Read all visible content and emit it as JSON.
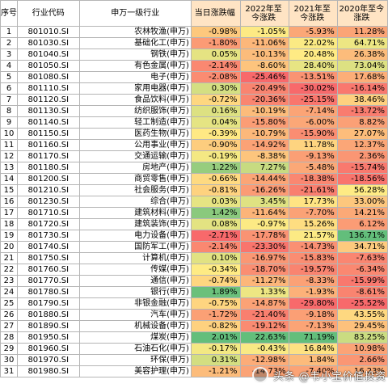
{
  "table": {
    "headers": {
      "idx": "序号",
      "code": "行业代码",
      "name": "申万一级行业",
      "daily": "当日涨跌幅",
      "y2022": "2022年至今涨跌",
      "y2021": "2021年至今涨跌",
      "y2020": "2020年至今涨跌"
    },
    "rows": [
      {
        "idx": "1",
        "code": "801010.SI",
        "name": "农林牧渔(申万)",
        "daily": "-0.98%",
        "y2022": "-1.05%",
        "y2021": "-5.93%",
        "y2020": "11.28%"
      },
      {
        "idx": "2",
        "code": "801030.SI",
        "name": "基础化工(申万)",
        "daily": "-1.80%",
        "y2022": "-11.06%",
        "y2021": "22.02%",
        "y2020": "64.71%"
      },
      {
        "idx": "3",
        "code": "801040.SI",
        "name": "钢铁(申万)",
        "daily": "0.05%",
        "y2022": "-10.13%",
        "y2021": "20.48%",
        "y2020": "26.38%"
      },
      {
        "idx": "4",
        "code": "801050.SI",
        "name": "有色金属(申万)",
        "daily": "-2.14%",
        "y2022": "-8.60%",
        "y2021": "28.40%",
        "y2020": "73.04%"
      },
      {
        "idx": "5",
        "code": "801080.SI",
        "name": "电子(申万)",
        "daily": "-2.08%",
        "y2022": "-25.46%",
        "y2021": "-13.51%",
        "y2020": "17.68%"
      },
      {
        "idx": "6",
        "code": "801110.SI",
        "name": "家用电器(申万)",
        "daily": "0.30%",
        "y2022": "-20.49%",
        "y2021": "-30.02%",
        "y2020": "-16.14%"
      },
      {
        "idx": "7",
        "code": "801120.SI",
        "name": "食品饮料(申万)",
        "daily": "-0.72%",
        "y2022": "-20.36%",
        "y2021": "-25.15%",
        "y2020": "38.46%"
      },
      {
        "idx": "8",
        "code": "801130.SI",
        "name": "纺织服饰(申万)",
        "daily": "0.16%",
        "y2022": "-10.19%",
        "y2021": "-7.14%",
        "y2020": "-13.72%"
      },
      {
        "idx": "9",
        "code": "801140.SI",
        "name": "轻工制造(申万)",
        "daily": "0.04%",
        "y2022": "-15.80%",
        "y2021": "-6.00%",
        "y2020": "8.82%"
      },
      {
        "idx": "10",
        "code": "801150.SI",
        "name": "医药生物(申万)",
        "daily": "-0.39%",
        "y2022": "-10.79%",
        "y2021": "-15.90%",
        "y2020": "27.07%"
      },
      {
        "idx": "11",
        "code": "801160.SI",
        "name": "公用事业(申万)",
        "daily": "-0.90%",
        "y2022": "-14.92%",
        "y2021": "11.78%",
        "y2020": "12.37%"
      },
      {
        "idx": "12",
        "code": "801170.SI",
        "name": "交通运输(申万)",
        "daily": "-0.19%",
        "y2022": "-8.38%",
        "y2021": "-9.13%",
        "y2020": "2.36%"
      },
      {
        "idx": "13",
        "code": "801180.SI",
        "name": "房地产(申万)",
        "daily": "1.22%",
        "y2022": "7.27%",
        "y2021": "-5.48%",
        "y2020": "-15.74%"
      },
      {
        "idx": "14",
        "code": "801200.SI",
        "name": "商贸零售(申万)",
        "daily": "-0.66%",
        "y2022": "-14.44%",
        "y2021": "-18.38%",
        "y2020": "-18.56%"
      },
      {
        "idx": "15",
        "code": "801210.SI",
        "name": "社会服务(申万)",
        "daily": "-0.81%",
        "y2022": "-16.26%",
        "y2021": "-21.61%",
        "y2020": "56.28%"
      },
      {
        "idx": "16",
        "code": "801230.SI",
        "name": "综合(申万)",
        "daily": "0.03%",
        "y2022": "3.45%",
        "y2021": "17.73%",
        "y2020": "33.00%"
      },
      {
        "idx": "17",
        "code": "801710.SI",
        "name": "建筑材料(申万)",
        "daily": "1.42%",
        "y2022": "-11.64%",
        "y2021": "-7.70%",
        "y2020": "14.21%"
      },
      {
        "idx": "18",
        "code": "801720.SI",
        "name": "建筑装饰(申万)",
        "daily": "0.08%",
        "y2022": "-0.97%",
        "y2021": "15.26%",
        "y2020": "6.12%"
      },
      {
        "idx": "19",
        "code": "801730.SI",
        "name": "电力设备(申万)",
        "daily": "-2.71%",
        "y2022": "-17.78%",
        "y2021": "21.57%",
        "y2020": "136.71%"
      },
      {
        "idx": "20",
        "code": "801740.SI",
        "name": "国防军工(申万)",
        "daily": "-2.14%",
        "y2022": "-23.30%",
        "y2021": "-14.73%",
        "y2020": "34.71%"
      },
      {
        "idx": "21",
        "code": "801750.SI",
        "name": "计算机(申万)",
        "daily": "0.10%",
        "y2022": "-16.97%",
        "y2021": "-15.83%",
        "y2020": "-7.63%"
      },
      {
        "idx": "22",
        "code": "801760.SI",
        "name": "传媒(申万)",
        "daily": "-0.34%",
        "y2022": "-18.70%",
        "y2021": "-19.57%",
        "y2020": "-6.34%"
      },
      {
        "idx": "23",
        "code": "801770.SI",
        "name": "通信(申万)",
        "daily": "-0.74%",
        "y2022": "-11.27%",
        "y2021": "-8.33%",
        "y2020": "-15.99%"
      },
      {
        "idx": "24",
        "code": "801780.SI",
        "name": "银行(申万)",
        "daily": "1.89%",
        "y2022": "1.33%",
        "y2021": "-1.93%",
        "y2020": "-8.61%"
      },
      {
        "idx": "25",
        "code": "801790.SI",
        "name": "非银金融(申万)",
        "daily": "-0.75%",
        "y2022": "-14.87%",
        "y2021": "-29.80%",
        "y2020": "-25.52%"
      },
      {
        "idx": "26",
        "code": "801880.SI",
        "name": "汽车(申万)",
        "daily": "-1.72%",
        "y2022": "-21.40%",
        "y2021": "-9.18%",
        "y2020": "43.55%"
      },
      {
        "idx": "27",
        "code": "801890.SI",
        "name": "机械设备(申万)",
        "daily": "-0.82%",
        "y2022": "-19.12%",
        "y2021": "-7.13%",
        "y2020": "29.45%"
      },
      {
        "idx": "28",
        "code": "801950.SI",
        "name": "煤炭(申万)",
        "daily": "2.01%",
        "y2022": "22.63%",
        "y2021": "71.19%",
        "y2020": "83.25%"
      },
      {
        "idx": "29",
        "code": "801960.SI",
        "name": "石油石化(申万)",
        "daily": "-0.17%",
        "y2022": "-0.43%",
        "y2021": "16.84%",
        "y2020": "10.98%"
      },
      {
        "idx": "30",
        "code": "801970.SI",
        "name": "环保(申万)",
        "daily": "0.31%",
        "y2022": "-12.98%",
        "y2021": "1.84%",
        "y2020": "2.66%"
      },
      {
        "idx": "31",
        "code": "801980.SI",
        "name": "美容护理(申万)",
        "daily": "-1.21%",
        "y2022": "-14.73%",
        "y2021": "-7.40%",
        "y2020": "16.23%"
      }
    ]
  },
  "scales": {
    "daily": {
      "min": -2.71,
      "max": 2.01
    },
    "y2022": {
      "min": -25.46,
      "max": 22.63
    },
    "y2021": {
      "min": -30.02,
      "max": 71.19
    },
    "y2020": {
      "min": -25.52,
      "max": 136.71
    }
  },
  "colors": {
    "header_bg": "#ffe4c4",
    "scale_low": "#f8696b",
    "scale_mid": "#ffeb84",
    "scale_high": "#63be7b"
  },
  "watermark": {
    "text": "头条 @韦小宝价值投资"
  }
}
